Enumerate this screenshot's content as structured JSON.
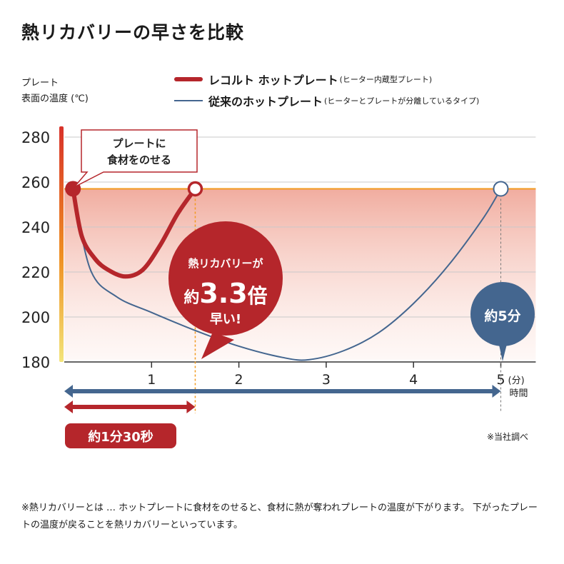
{
  "title": "熱リカバリーの早さを比較",
  "ylabel": [
    "プレート",
    "表面の温度 (℃)"
  ],
  "legend": [
    {
      "main": "レコルト ホットプレート",
      "sub": "(ヒーター内蔵型プレート)"
    },
    {
      "main": "従来のホットプレート",
      "sub": "(ヒーターとプレートが分離しているタイプ)"
    }
  ],
  "colors": {
    "recolte": "#b5262b",
    "conventional": "#44668f",
    "band": "#f29a1e"
  },
  "chart_data": {
    "type": "line",
    "xlabel": "時間",
    "xunit": "(分)",
    "ylabel": "プレート 表面の温度 (℃)",
    "xlim": [
      0,
      5.4
    ],
    "ylim": [
      180,
      280
    ],
    "xticks": [
      1,
      2,
      3,
      4,
      5
    ],
    "yticks": [
      180,
      200,
      220,
      240,
      260,
      280
    ],
    "grid": true,
    "series": [
      {
        "name": "レコルト ホットプレート",
        "x": [
          0.1,
          0.2,
          0.35,
          0.5,
          0.7,
          0.9,
          1.1,
          1.3,
          1.5
        ],
        "y": [
          257,
          236,
          226,
          221,
          218,
          221,
          232,
          246,
          257
        ]
      },
      {
        "name": "従来のホットプレート",
        "x": [
          0.1,
          0.3,
          0.6,
          1.0,
          1.5,
          2.0,
          2.5,
          2.8,
          3.2,
          3.6,
          4.0,
          4.4,
          4.8,
          5.0
        ],
        "y": [
          257,
          221,
          209,
          202,
          194,
          187,
          182,
          181,
          185,
          193,
          206,
          223,
          244,
          257
        ]
      }
    ],
    "annotations": {
      "callout": [
        "プレートに",
        "食材をのせる"
      ],
      "bubble": {
        "line1": "熱リカバリーが",
        "prefix": "約",
        "value": "3.3",
        "suffix": "倍",
        "line3": "早い!"
      },
      "blue_bubble": "約5分",
      "red_pill": "約1分30秒"
    }
  },
  "note": "※当社調べ",
  "footnote": "※熱リカバリーとは … ホットプレートに食材をのせると、食材に熱が奪われプレートの温度が下がります。 下がったプレートの温度が戻ることを熱リカバリーといっています。"
}
